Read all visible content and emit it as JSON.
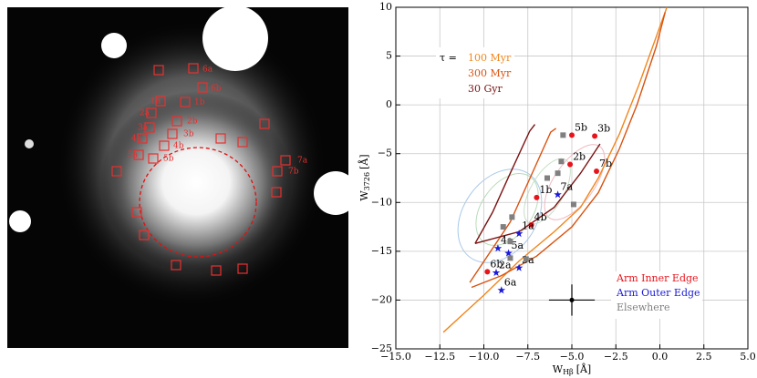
{
  "image": {
    "labels": [
      "6a",
      "6b",
      "1a",
      "1b",
      "2a",
      "2b",
      "3a",
      "3b",
      "4a",
      "4b",
      "5a",
      "5b",
      "7a",
      "7b"
    ]
  },
  "chart_data": {
    "type": "scatter",
    "xlabel": {
      "symbol": "W",
      "sub": "Hβ",
      "unit": "[Å]"
    },
    "ylabel": {
      "symbol": "W",
      "sub": "3726",
      "unit": "[Å]"
    },
    "xlim": [
      -15,
      5
    ],
    "ylim": [
      -25,
      10
    ],
    "xticks": [
      {
        "value": -15,
        "label": "−15.0"
      },
      {
        "value": -12.5,
        "label": "−12.5"
      },
      {
        "value": -10,
        "label": "−10.0"
      },
      {
        "value": -7.5,
        "label": "−7.5"
      },
      {
        "value": -5,
        "label": "−5.0"
      },
      {
        "value": -2.5,
        "label": "−2.5"
      },
      {
        "value": 0,
        "label": "0.0"
      },
      2.5,
      {
        "value": 5,
        "label": "5.0"
      }
    ],
    "yticks": [
      {
        "value": -25,
        "label": "−25"
      },
      {
        "value": -20,
        "label": "−20"
      },
      {
        "value": -15,
        "label": "−15"
      },
      {
        "value": -10,
        "label": "−10"
      },
      {
        "value": -5,
        "label": "−5"
      },
      0,
      5,
      10
    ],
    "grid": true,
    "tau_label": "τ =",
    "tracks": [
      {
        "name": "100 Myr",
        "color": "#f0861c",
        "x": [
          -12.3,
          -10,
          -8,
          -6,
          -4.5,
          -3.5,
          -2.3,
          -1.2,
          0,
          0.4
        ],
        "y": [
          -23.3,
          -19.5,
          -16,
          -13,
          -10.5,
          -7.5,
          -3,
          2,
          8,
          10
        ]
      },
      {
        "name": "300 Myr",
        "color": "#d9520f",
        "x": [
          -10.7,
          -9,
          -7,
          -5,
          -3.5,
          -2.3,
          -1.3,
          -0.2,
          0.3,
          null,
          -10.8,
          -8.5,
          -7,
          -6.2,
          -5.9
        ],
        "y": [
          -18.7,
          -17.5,
          -15.5,
          -12.5,
          -9,
          -4.5,
          0,
          6,
          9.5,
          null,
          -18.2,
          -12,
          -6,
          -2.8,
          -2.4
        ]
      },
      {
        "name": "30 Gyr",
        "color": "#7a1212",
        "x": [
          -10.5,
          -9.5,
          -8.5,
          -7.4,
          -7.1,
          null,
          -10.5,
          -8,
          -6,
          -4.5,
          -3.4
        ],
        "y": [
          -14.2,
          -11,
          -7,
          -2.7,
          -2,
          null,
          -14.2,
          -13,
          -10.5,
          -7,
          -4
        ]
      }
    ],
    "points": [
      {
        "name": "Arm Inner Edge",
        "color": "#e8141c",
        "marker": "circle",
        "x": [
          -5,
          -3.7,
          -5.1,
          -3.6,
          -7,
          -7.3,
          -9.8
        ],
        "y": [
          -3.1,
          -3.2,
          -6.1,
          -6.8,
          -9.5,
          -12.3,
          -17.1
        ],
        "labels": [
          "5b",
          "3b",
          "2b",
          "7b",
          "1b",
          "4b",
          "6b"
        ]
      },
      {
        "name": "Arm Outer Edge",
        "color": "#1a1ad8",
        "marker": "star",
        "x": [
          -5.8,
          -8,
          -9.2,
          -8.6,
          -8,
          -9.3,
          -9
        ],
        "y": [
          -9.2,
          -13.2,
          -14.7,
          -15.2,
          -16.7,
          -17.2,
          -19
        ],
        "labels": [
          "7a",
          "1a",
          "4a",
          "5a",
          "3a",
          "2a",
          "6a"
        ]
      },
      {
        "name": "Elsewhere",
        "color": "#808080",
        "marker": "square",
        "x": [
          -5.5,
          -5.6,
          -5.8,
          -6.4,
          -8.4,
          -8.9,
          -8.5,
          -4.9,
          -8.5,
          -7.6
        ],
        "y": [
          -3.1,
          -5.8,
          -7,
          -7.5,
          -11.5,
          -12.5,
          -14,
          -10.2,
          -15.7,
          -15.8
        ]
      }
    ],
    "errorbar": {
      "x": -5,
      "y": -20,
      "xerr": 1.3,
      "yerr": 1.6
    }
  }
}
